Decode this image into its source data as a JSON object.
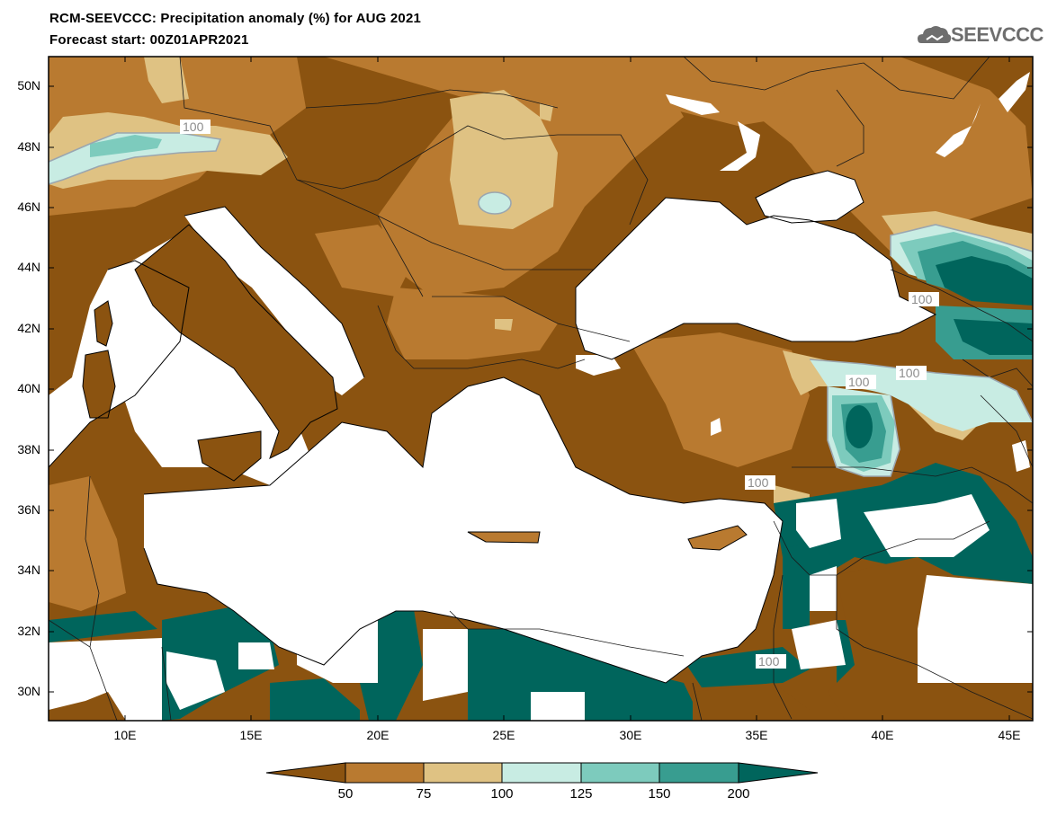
{
  "header": {
    "title": "RCM-SEEVCCC: Precipitation anomaly (%) for AUG 2021",
    "subtitle": "Forecast start: 00Z01APR2021",
    "logo_text": "SEEVCCC"
  },
  "map": {
    "lat_labels": [
      "50N",
      "48N",
      "46N",
      "44N",
      "42N",
      "40N",
      "38N",
      "36N",
      "34N",
      "32N",
      "30N"
    ],
    "lon_labels": [
      "10E",
      "15E",
      "20E",
      "25E",
      "30E",
      "35E",
      "40E",
      "45E"
    ],
    "contour_labels": [
      "100",
      "100",
      "100",
      "100",
      "100",
      "100"
    ],
    "colors": {
      "lt50": "#8b5310",
      "50_75": "#b97a30",
      "75_100": "#dfc283",
      "100_125": "#c8ece3",
      "125_150": "#7dcbbd",
      "150_200": "#389d90",
      "gt200": "#00655c",
      "sea": "#ffffff"
    }
  },
  "colorbar": {
    "labels": [
      "50",
      "75",
      "100",
      "125",
      "150",
      "200"
    ]
  }
}
